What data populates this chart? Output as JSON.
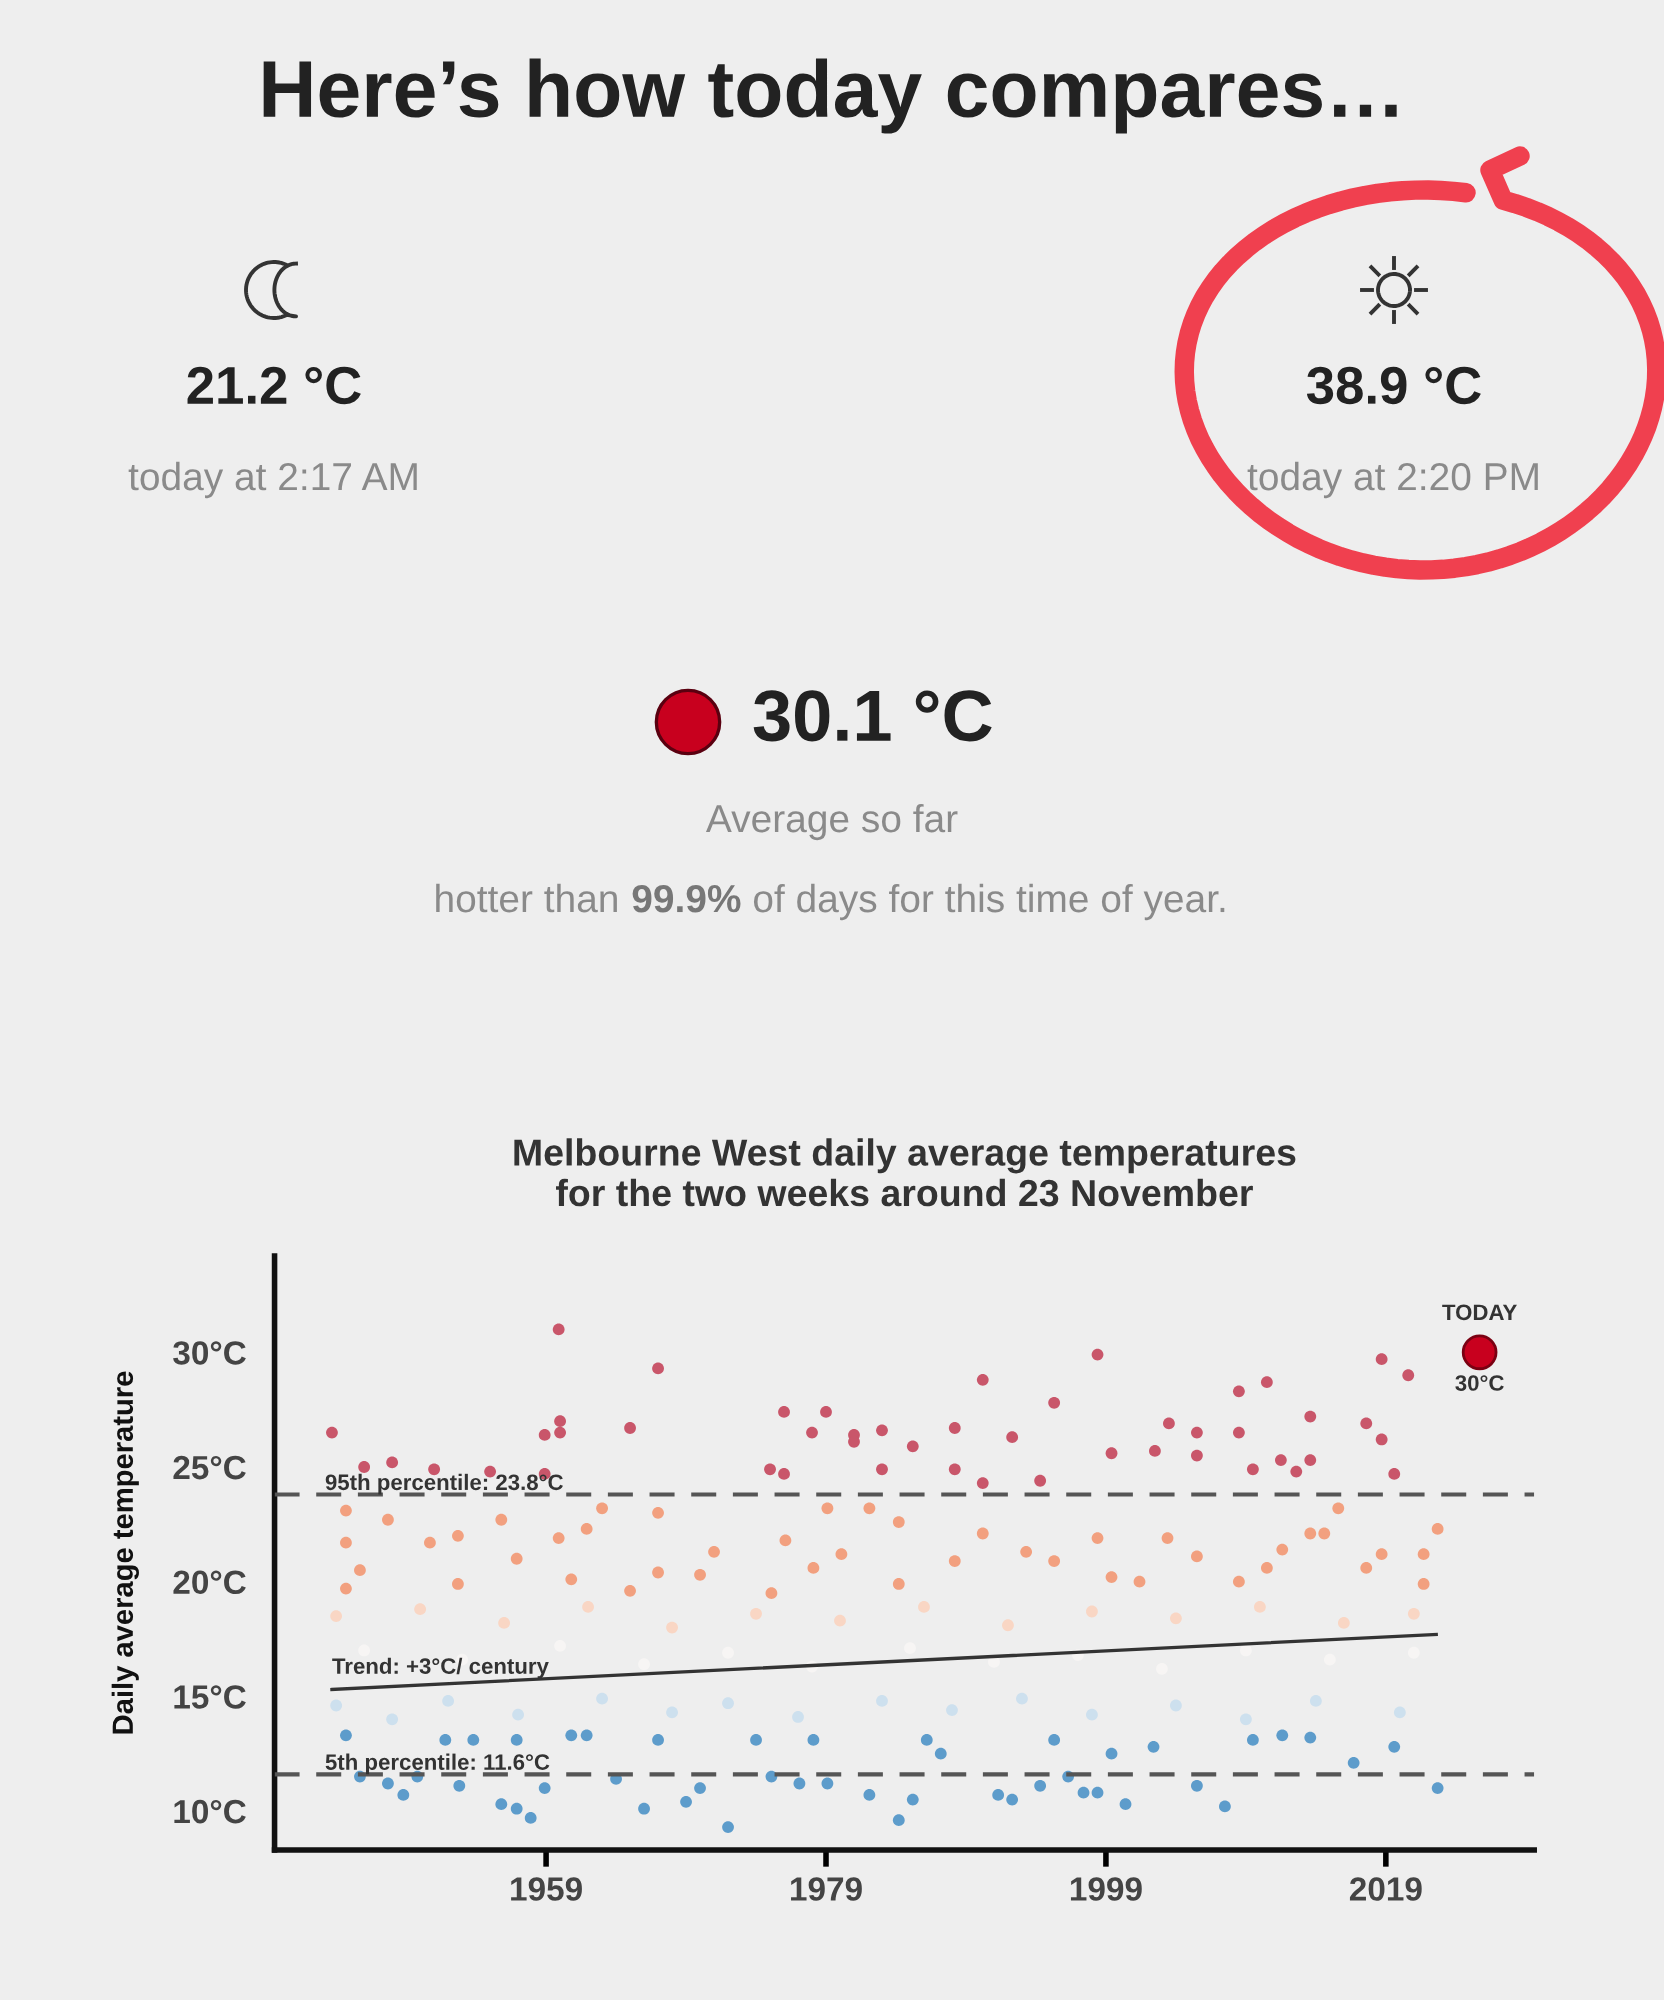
{
  "chart_data": [
    {
      "type": "other",
      "title": "Here’s how today compares…",
      "annotations": [
        "21.2 °C",
        "today at 2:17 AM",
        "38.9 °C",
        "today at 2:20 PM",
        "30.1 °C",
        "Average so far",
        "hotter than ",
        "99.9%",
        " of days for this time of year."
      ]
    },
    {
      "type": "scatter",
      "title": "Melbourne West daily average temperatures\nfor the two weeks around 23 November",
      "ylabel": "Daily average temperature",
      "xlim": [
        1939.6,
        2029.6
      ],
      "xticks": [
        1959,
        1979,
        1999,
        2019
      ],
      "ylim": [
        8.3,
        34.2
      ],
      "yticks": [
        {
          "value": 10,
          "label": "10°C"
        },
        {
          "value": 15,
          "label": "15°C"
        },
        {
          "value": 20,
          "label": "20°C"
        },
        {
          "value": 25,
          "label": "25°C"
        },
        {
          "value": 30,
          "label": "30°C"
        }
      ],
      "grid": false,
      "ref_lines": [
        {
          "axis": "y",
          "value": 23.8,
          "label": "95th percentile: 23.8°C",
          "color": "#555555",
          "line_style": "dashed"
        },
        {
          "axis": "y",
          "value": 11.6,
          "label": "5th percentile: 11.6°C",
          "color": "#555555",
          "line_style": "dashed"
        }
      ],
      "annotations": [
        {
          "text": "30°C",
          "x": 2025.7,
          "y": 30
        }
      ],
      "series": [
        {
          "color": "#f7f5f4",
          "x": [
            1946,
            1953,
            1960,
            1966,
            1972,
            1978,
            1985,
            1991,
            1997,
            2003,
            2009,
            2015,
            2021
          ],
          "values": [
            17.0,
            16.6,
            17.2,
            16.4,
            16.9,
            16.3,
            17.1,
            16.5,
            16.8,
            16.2,
            17.0,
            16.6,
            16.9
          ]
        },
        {
          "color": "#f9d6c4",
          "x": [
            1944,
            1950,
            1956,
            1962,
            1968,
            1974,
            1980,
            1986,
            1992,
            1998,
            2004,
            2010,
            2016,
            2021
          ],
          "values": [
            18.5,
            18.8,
            18.2,
            18.9,
            18.0,
            18.6,
            18.3,
            18.9,
            18.1,
            18.7,
            18.4,
            18.9,
            18.2,
            18.6
          ]
        },
        {
          "color": "#cde0ee",
          "x": [
            1944,
            1948,
            1952,
            1957,
            1963,
            1968,
            1972,
            1977,
            1983,
            1988,
            1993,
            1998,
            2004,
            2009,
            2014,
            2020
          ],
          "values": [
            14.6,
            14.0,
            14.8,
            14.2,
            14.9,
            14.3,
            14.7,
            14.1,
            14.8,
            14.4,
            14.9,
            14.2,
            14.6,
            14.0,
            14.8,
            14.3
          ]
        },
        {
          "color": "#f2a07f",
          "x": [
            1944.7,
            1944.7,
            1944.7,
            1945.7,
            1947.7,
            1950.7,
            1952.7,
            1952.7,
            1955.8,
            1956.9,
            1959.9,
            1960.8,
            1961.9,
            1963,
            1965,
            1967,
            1967,
            1970,
            1971,
            1975.1,
            1976.1,
            1978.1,
            1979.1,
            1980.1,
            1982.1,
            1984.2,
            1984.2,
            1988.2,
            1990.2,
            1993.3,
            1995.3,
            1998.4,
            1999.4,
            2001.4,
            2003.4,
            2005.5,
            2008.5,
            2010.5,
            2011.6,
            2013.6,
            2014.6,
            2015.6,
            2017.6,
            2018.7,
            2021.7,
            2022.7,
            2021.7
          ],
          "values": [
            23.1,
            21.7,
            19.7,
            20.5,
            22.7,
            21.7,
            22.0,
            19.9,
            22.7,
            21.0,
            21.9,
            20.1,
            22.3,
            23.2,
            19.6,
            23.0,
            20.4,
            20.3,
            21.3,
            19.5,
            21.8,
            20.6,
            23.2,
            21.2,
            23.2,
            19.9,
            22.6,
            20.9,
            22.1,
            21.3,
            20.9,
            21.9,
            20.2,
            20.0,
            21.9,
            21.1,
            20.0,
            20.6,
            21.4,
            22.1,
            22.1,
            23.2,
            20.6,
            21.2,
            21.2,
            22.3,
            19.9
          ]
        },
        {
          "color": "#c9566a",
          "x": [
            1943.7,
            1959.9,
            1967,
            1960,
            1958.9,
            1960,
            1965,
            1958.9,
            1946,
            1948,
            1951,
            1955,
            1976,
            1979,
            1978,
            1981,
            1981,
            1983,
            1975,
            1976,
            1983,
            1998.4,
            1990.2,
            1995.3,
            2018.7,
            2020.6,
            2010.5,
            2008.5,
            1988.2,
            1992.3,
            1985.2,
            1988.2,
            1990.2,
            1994.3,
            1999.4,
            2002.5,
            2003.5,
            2005.5,
            2008.5,
            2005.5,
            2013.6,
            2011.5,
            2012.6,
            2013.6,
            2017.6,
            2018.7,
            2019.6,
            2009.5
          ],
          "values": [
            26.5,
            31.0,
            29.3,
            27.0,
            26.4,
            26.5,
            26.7,
            24.7,
            25.0,
            25.2,
            24.9,
            24.8,
            27.4,
            27.4,
            26.5,
            26.4,
            26.1,
            26.6,
            24.9,
            24.7,
            24.9,
            29.9,
            28.8,
            27.8,
            29.7,
            29.0,
            28.7,
            28.3,
            26.7,
            26.3,
            25.9,
            24.9,
            24.3,
            24.4,
            25.6,
            25.7,
            26.9,
            26.5,
            26.5,
            25.5,
            27.2,
            25.3,
            24.8,
            25.3,
            26.9,
            26.2,
            24.7,
            24.9
          ]
        },
        {
          "color": "#5d9ccb",
          "x": [
            1944.7,
            1945.7,
            1947.7,
            1948.8,
            1949.8,
            1951.8,
            1952.8,
            1953.8,
            1955.8,
            1956.9,
            1957.9,
            1956.9,
            1958.9,
            1960.8,
            1961.9,
            1964,
            1966,
            1967,
            1969,
            1970,
            1972,
            1974,
            1975.1,
            1977.1,
            1978.1,
            1982.1,
            1979.1,
            1984.2,
            1985.2,
            1986.2,
            1987.2,
            1991.3,
            1992.3,
            1994.3,
            1995.3,
            1996.3,
            1997.4,
            1998.4,
            1999.4,
            2000.4,
            2002.4,
            2005.5,
            2007.5,
            2009.5,
            2011.6,
            2013.6,
            2016.7,
            2019.6,
            2022.7
          ],
          "values": [
            13.3,
            11.5,
            11.2,
            10.7,
            11.5,
            13.1,
            11.1,
            13.1,
            10.3,
            10.1,
            9.7,
            13.1,
            11.0,
            13.3,
            13.3,
            11.4,
            10.1,
            13.1,
            10.4,
            11.0,
            9.3,
            13.1,
            11.5,
            11.2,
            13.1,
            10.7,
            11.2,
            9.6,
            10.5,
            13.1,
            12.5,
            10.7,
            10.5,
            11.1,
            13.1,
            11.5,
            10.8,
            10.8,
            12.5,
            10.3,
            12.8,
            11.1,
            10.2,
            13.1,
            13.3,
            13.2,
            12.1,
            12.8,
            11.0
          ]
        },
        {
          "type": "line",
          "name": "Trend: +3°C/ century",
          "color": "#333333",
          "x": [
            1943.7,
            2022.6
          ],
          "values": [
            15.3,
            17.7
          ]
        },
        {
          "name": "TODAY",
          "color": "#c8001e",
          "x": [
            2025.7
          ],
          "values": [
            30
          ]
        }
      ]
    }
  ]
}
